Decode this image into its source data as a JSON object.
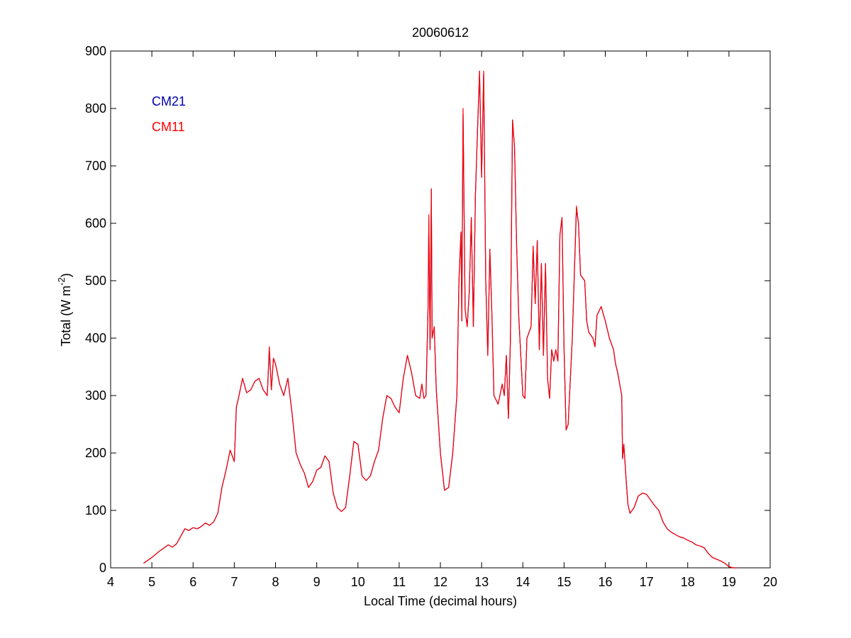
{
  "chart_data": {
    "type": "line",
    "title": "20060612",
    "xlabel": "Local Time (decimal hours)",
    "ylabel": [
      "Total (W m",
      "-2",
      ")"
    ],
    "xlim": [
      4,
      20
    ],
    "xticks": [
      4,
      5,
      6,
      7,
      8,
      9,
      10,
      11,
      12,
      13,
      14,
      15,
      16,
      17,
      18,
      19,
      20
    ],
    "ylim": [
      0,
      900
    ],
    "yticks": [
      0,
      100,
      200,
      300,
      400,
      500,
      600,
      700,
      800,
      900
    ],
    "legend": "upper left",
    "box": true,
    "x": [
      4.8,
      5.0,
      5.2,
      5.4,
      5.5,
      5.6,
      5.7,
      5.8,
      5.9,
      6.0,
      6.1,
      6.2,
      6.3,
      6.4,
      6.5,
      6.6,
      6.7,
      6.8,
      6.9,
      7.0,
      7.05,
      7.1,
      7.2,
      7.3,
      7.4,
      7.5,
      7.6,
      7.7,
      7.8,
      7.85,
      7.9,
      7.95,
      8.0,
      8.1,
      8.2,
      8.3,
      8.4,
      8.5,
      8.6,
      8.7,
      8.8,
      8.9,
      9.0,
      9.1,
      9.2,
      9.3,
      9.4,
      9.5,
      9.6,
      9.7,
      9.8,
      9.9,
      10.0,
      10.1,
      10.2,
      10.3,
      10.4,
      10.5,
      10.6,
      10.7,
      10.8,
      10.9,
      11.0,
      11.1,
      11.2,
      11.3,
      11.4,
      11.5,
      11.55,
      11.6,
      11.65,
      11.7,
      11.72,
      11.75,
      11.78,
      11.8,
      11.85,
      11.9,
      12.0,
      12.1,
      12.2,
      12.3,
      12.4,
      12.45,
      12.5,
      12.52,
      12.55,
      12.6,
      12.65,
      12.7,
      12.75,
      12.8,
      12.85,
      12.9,
      12.95,
      13.0,
      13.05,
      13.1,
      13.15,
      13.2,
      13.25,
      13.3,
      13.4,
      13.5,
      13.55,
      13.6,
      13.65,
      13.7,
      13.75,
      13.8,
      13.85,
      13.9,
      14.0,
      14.05,
      14.1,
      14.2,
      14.25,
      14.3,
      14.35,
      14.4,
      14.45,
      14.5,
      14.55,
      14.6,
      14.65,
      14.7,
      14.75,
      14.8,
      14.85,
      14.9,
      14.95,
      15.0,
      15.05,
      15.1,
      15.2,
      15.3,
      15.35,
      15.4,
      15.5,
      15.55,
      15.6,
      15.7,
      15.75,
      15.8,
      15.9,
      16.0,
      16.1,
      16.2,
      16.25,
      16.3,
      16.4,
      16.42,
      16.45,
      16.5,
      16.55,
      16.6,
      16.7,
      16.8,
      16.9,
      17.0,
      17.1,
      17.2,
      17.3,
      17.4,
      17.5,
      17.6,
      17.7,
      17.8,
      17.9,
      18.0,
      18.1,
      18.2,
      18.3,
      18.4,
      18.5,
      18.6,
      18.7,
      18.8,
      18.9,
      19.0,
      19.1,
      19.2
    ],
    "series": [
      {
        "name": "CM21",
        "color": "#0000aa",
        "values": [
          8,
          18,
          30,
          40,
          36,
          42,
          55,
          68,
          65,
          70,
          68,
          72,
          78,
          74,
          80,
          95,
          140,
          170,
          205,
          185,
          280,
          295,
          330,
          305,
          310,
          325,
          330,
          310,
          300,
          380,
          310,
          365,
          355,
          320,
          300,
          330,
          270,
          200,
          180,
          165,
          140,
          150,
          170,
          175,
          195,
          185,
          130,
          105,
          98,
          105,
          160,
          220,
          215,
          160,
          152,
          160,
          185,
          205,
          260,
          300,
          295,
          280,
          270,
          330,
          370,
          340,
          300,
          295,
          320,
          295,
          300,
          450,
          605,
          380,
          660,
          400,
          420,
          310,
          200,
          135,
          140,
          200,
          300,
          500,
          585,
          430,
          790,
          450,
          420,
          480,
          610,
          420,
          650,
          760,
          865,
          680,
          860,
          500,
          370,
          555,
          440,
          300,
          285,
          320,
          300,
          370,
          260,
          400,
          780,
          730,
          560,
          440,
          300,
          295,
          400,
          420,
          560,
          460,
          570,
          380,
          530,
          370,
          530,
          330,
          295,
          380,
          360,
          380,
          360,
          580,
          610,
          380,
          240,
          250,
          400,
          625,
          600,
          510,
          500,
          430,
          410,
          400,
          385,
          440,
          455,
          430,
          400,
          380,
          355,
          340,
          300,
          190,
          215,
          160,
          110,
          95,
          105,
          125,
          130,
          128,
          118,
          108,
          100,
          80,
          68,
          62,
          58,
          54,
          52,
          48,
          45,
          40,
          38,
          35,
          25,
          18,
          15,
          12,
          8,
          2,
          0,
          0
        ]
      },
      {
        "name": "CM11",
        "color": "#ff0000",
        "values": [
          8,
          18,
          30,
          40,
          36,
          42,
          55,
          68,
          65,
          70,
          68,
          72,
          78,
          74,
          80,
          95,
          140,
          170,
          205,
          185,
          280,
          295,
          330,
          305,
          310,
          325,
          330,
          310,
          300,
          385,
          310,
          365,
          355,
          320,
          300,
          330,
          270,
          200,
          180,
          165,
          140,
          150,
          170,
          175,
          195,
          185,
          130,
          105,
          98,
          105,
          160,
          220,
          215,
          160,
          152,
          160,
          185,
          205,
          260,
          300,
          295,
          280,
          270,
          330,
          370,
          340,
          300,
          295,
          320,
          295,
          300,
          450,
          615,
          380,
          660,
          400,
          420,
          310,
          200,
          135,
          140,
          200,
          300,
          500,
          585,
          430,
          800,
          450,
          420,
          480,
          610,
          420,
          650,
          760,
          865,
          680,
          865,
          500,
          370,
          555,
          440,
          300,
          285,
          320,
          300,
          370,
          260,
          400,
          780,
          730,
          560,
          440,
          300,
          295,
          400,
          420,
          560,
          460,
          570,
          380,
          530,
          370,
          530,
          330,
          295,
          380,
          360,
          380,
          360,
          580,
          610,
          380,
          240,
          250,
          400,
          630,
          600,
          510,
          500,
          430,
          410,
          400,
          385,
          440,
          455,
          430,
          400,
          380,
          355,
          340,
          300,
          190,
          215,
          160,
          110,
          95,
          105,
          125,
          130,
          128,
          118,
          108,
          100,
          80,
          68,
          62,
          58,
          54,
          52,
          48,
          45,
          40,
          38,
          35,
          25,
          18,
          15,
          12,
          8,
          2,
          0,
          0
        ]
      }
    ]
  }
}
